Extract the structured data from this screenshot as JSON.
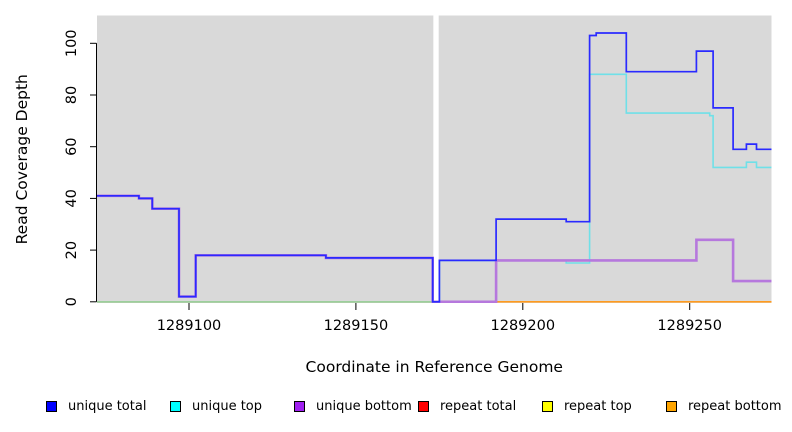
{
  "figure": {
    "xlabel": "Coordinate in Reference Genome",
    "ylabel": "Read Coverage Depth"
  },
  "legend": {
    "items": [
      {
        "label": "unique total",
        "color": "#0000ff"
      },
      {
        "label": "unique top",
        "color": "#00ffff"
      },
      {
        "label": "unique bottom",
        "color": "#a020f0"
      },
      {
        "label": "repeat total",
        "color": "#ff0000"
      },
      {
        "label": "repeat top",
        "color": "#ffff00"
      },
      {
        "label": "repeat bottom",
        "color": "#ffa500"
      }
    ]
  },
  "chart_data": {
    "type": "line",
    "subtype": "step",
    "title": "",
    "xlabel": "Coordinate in Reference Genome",
    "ylabel": "Read Coverage Depth",
    "xlim": [
      1289072,
      1289275
    ],
    "ylim": [
      0,
      111
    ],
    "x_ticks": [
      "1289100",
      "1289150",
      "1289200",
      "1289250"
    ],
    "y_ticks": [
      "0",
      "20",
      "40",
      "60",
      "80",
      "100"
    ],
    "grid": false,
    "plot_background": "#d9d9d9",
    "legend_position": "bottom",
    "masked_region": {
      "x_start": 1289173.2,
      "x_end": 1289174.8,
      "color": "#ffffff"
    },
    "series": [
      {
        "name": "unique total",
        "legend_color": "#0000ff",
        "line_color": "#2a2aff",
        "width": 1.7,
        "points": [
          [
            1289072,
            41
          ],
          [
            1289085,
            40
          ],
          [
            1289089,
            36
          ],
          [
            1289097,
            2
          ],
          [
            1289102,
            18
          ],
          [
            1289141,
            17
          ],
          [
            1289173,
            0
          ],
          [
            1289175,
            16
          ],
          [
            1289192,
            32
          ],
          [
            1289213,
            31
          ],
          [
            1289220,
            103
          ],
          [
            1289222,
            104
          ],
          [
            1289231,
            89
          ],
          [
            1289252,
            97
          ],
          [
            1289257,
            75
          ],
          [
            1289263,
            59
          ],
          [
            1289267,
            61
          ],
          [
            1289270,
            59
          ]
        ]
      },
      {
        "name": "unique top",
        "legend_color": "#00ffff",
        "line_color": "#6fe0e8",
        "width": 1.6,
        "points": [
          [
            1289072,
            0
          ],
          [
            1289175,
            16
          ],
          [
            1289213,
            15
          ],
          [
            1289220,
            88
          ],
          [
            1289231,
            73
          ],
          [
            1289256,
            72
          ],
          [
            1289257,
            52
          ],
          [
            1289267,
            54
          ],
          [
            1289270,
            52
          ]
        ]
      },
      {
        "name": "unique bottom",
        "legend_color": "#a020f0",
        "line_color": "#b678dd",
        "width": 2.6,
        "points": [
          [
            1289072,
            41
          ],
          [
            1289085,
            40
          ],
          [
            1289089,
            36
          ],
          [
            1289097,
            2
          ],
          [
            1289102,
            18
          ],
          [
            1289141,
            17
          ],
          [
            1289173,
            0
          ],
          [
            1289192,
            16
          ],
          [
            1289252,
            24
          ],
          [
            1289263,
            8
          ]
        ]
      },
      {
        "name": "repeat total",
        "legend_color": "#ff0000",
        "line_color": "#ff0000",
        "width": 1.5,
        "points": [
          [
            1289072,
            0
          ]
        ]
      },
      {
        "name": "repeat top",
        "legend_color": "#ffff00",
        "line_color": "#ffff00",
        "width": 1.5,
        "points": [
          [
            1289072,
            0
          ]
        ]
      },
      {
        "name": "repeat bottom",
        "legend_color": "#ffa500",
        "line_color": "#ff9a1e",
        "width": 1.6,
        "points": [
          [
            1289072,
            0
          ]
        ]
      }
    ],
    "zero_overlap_segments": [
      {
        "x_start": 1289072,
        "x_end": 1289173,
        "color": "#9ccf9c"
      },
      {
        "x_start": 1289175,
        "x_end": 1289192,
        "color": "#c864c8"
      }
    ]
  }
}
